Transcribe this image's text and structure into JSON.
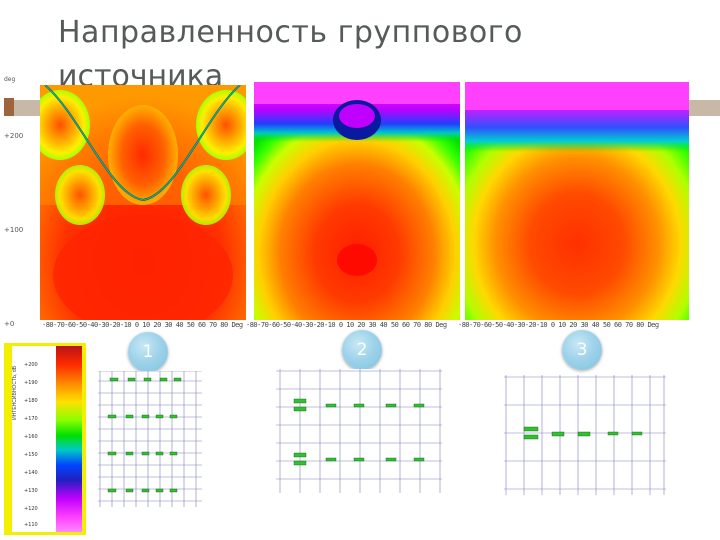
{
  "slide": {
    "title_line1": "Направленность группового",
    "title_line2": "источника",
    "colors": {
      "title": "#555a5a",
      "accent_bar": "#c8b9a6",
      "accent_box": "#a0643c",
      "badge": "#9ed3ea"
    }
  },
  "left_axis": {
    "corner_label": "deg",
    "ticks": [
      "+200",
      "+100",
      "+0"
    ]
  },
  "panels": [
    {
      "number": "1",
      "x_axis": "-80-70-60-50-40-30-20-10 0 10 20 30 40 50 60 70 80",
      "unit": "Deg"
    },
    {
      "number": "2",
      "x_axis": "-80-70-60-50-40-30-20-10 0 10 20 30 40 50 60 70 80",
      "unit": "Deg"
    },
    {
      "number": "3",
      "x_axis": "-80-70-60-50-40-30-20-10 0 10 20 30 40 50 60 70 80",
      "unit": "Deg"
    }
  ],
  "color_scale": {
    "ticks": [
      "+200",
      "+190",
      "+180",
      "+170",
      "+160",
      "+150",
      "+140",
      "+130",
      "+120",
      "+110"
    ],
    "side_label": "ИНТЕНСИВНОСТЬ, dB"
  }
}
